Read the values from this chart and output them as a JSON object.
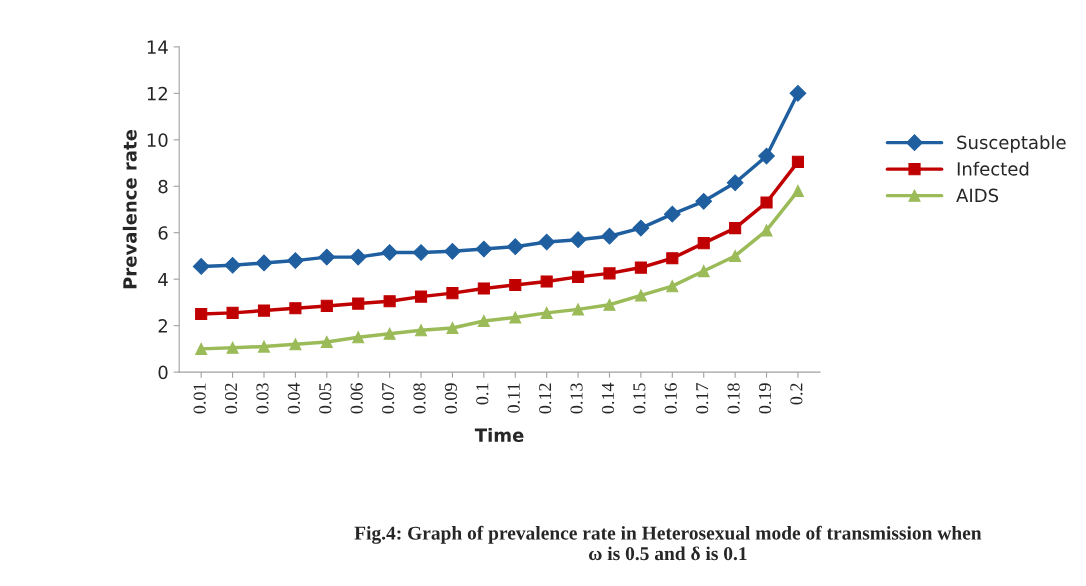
{
  "chart_data": {
    "type": "line",
    "xlabel": "Time",
    "ylabel": "Prevalence rate",
    "categories": [
      "0.01",
      "0.02",
      "0.03",
      "0.04",
      "0.05",
      "0.06",
      "0.07",
      "0.08",
      "0.09",
      "0.1",
      "0.11",
      "0.12",
      "0.13",
      "0.14",
      "0.15",
      "0.16",
      "0.17",
      "0.18",
      "0.19",
      "0.2"
    ],
    "series": [
      {
        "name": "Susceptable",
        "color": "#1f5fa0",
        "marker": "diamond",
        "values": [
          4.55,
          4.6,
          4.7,
          4.8,
          4.95,
          4.95,
          5.15,
          5.15,
          5.2,
          5.3,
          5.4,
          5.6,
          5.7,
          5.85,
          6.2,
          6.8,
          7.35,
          8.15,
          9.3,
          12.0
        ]
      },
      {
        "name": "Infected",
        "color": "#c00000",
        "marker": "square",
        "values": [
          2.5,
          2.55,
          2.65,
          2.75,
          2.85,
          2.95,
          3.05,
          3.25,
          3.4,
          3.6,
          3.75,
          3.9,
          4.1,
          4.25,
          4.5,
          4.9,
          5.55,
          6.2,
          7.3,
          9.05
        ]
      },
      {
        "name": "AIDS",
        "color": "#9bbb59",
        "marker": "triangle",
        "values": [
          1.0,
          1.05,
          1.1,
          1.2,
          1.3,
          1.5,
          1.65,
          1.8,
          1.9,
          2.2,
          2.35,
          2.55,
          2.7,
          2.9,
          3.3,
          3.7,
          4.35,
          5.0,
          6.1,
          7.8
        ]
      }
    ],
    "ylim": [
      0,
      14
    ],
    "yticks": [
      0,
      2,
      4,
      6,
      8,
      10,
      12,
      14
    ],
    "grid": false,
    "legend": "right",
    "annotations": [
      "Fig.4: Graph of prevalence rate in Heterosexual mode of transmission when\nω is 0.5 and δ is 0.1"
    ]
  }
}
